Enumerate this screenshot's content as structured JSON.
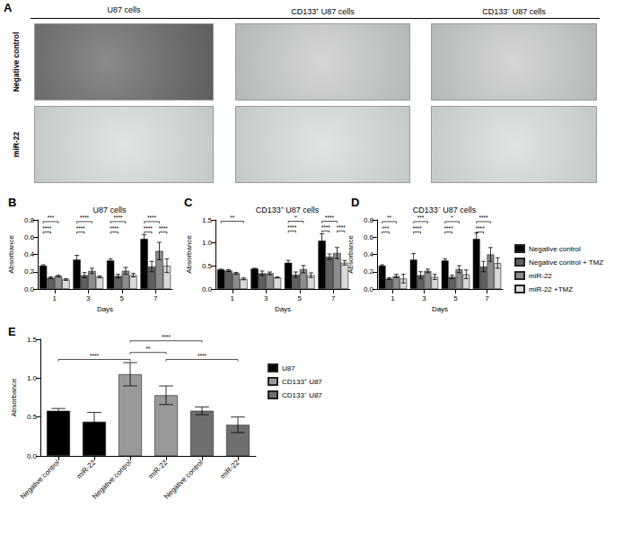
{
  "panel_a": {
    "label": "A",
    "columns": [
      "U87 cells",
      "CD133⁺ U87 cells",
      "CD133⁻ U87 cells"
    ],
    "rows": [
      "Negative control",
      "miR-22"
    ]
  },
  "chart_data": [
    {
      "panel": "B",
      "type": "bar",
      "title": "U87 cells",
      "x_label": "Days",
      "y_label": "Absorbance",
      "categories": [
        "1",
        "3",
        "5",
        "7"
      ],
      "series": [
        {
          "name": "Negative control",
          "color": "#000000",
          "values": [
            0.27,
            0.34,
            0.33,
            0.58
          ],
          "errors": [
            0.01,
            0.05,
            0.02,
            0.05
          ]
        },
        {
          "name": "Negative control + TMZ",
          "color": "#606060",
          "values": [
            0.13,
            0.16,
            0.15,
            0.26
          ],
          "errors": [
            0.01,
            0.03,
            0.02,
            0.06
          ]
        },
        {
          "name": "miR-22",
          "color": "#8c8c8c",
          "values": [
            0.15,
            0.21,
            0.21,
            0.44
          ],
          "errors": [
            0.01,
            0.03,
            0.04,
            0.1
          ]
        },
        {
          "name": "miR-22 +TMZ",
          "color": "#d9d9d9",
          "values": [
            0.11,
            0.14,
            0.16,
            0.27
          ],
          "errors": [
            0.01,
            0.01,
            0.02,
            0.08
          ]
        }
      ],
      "ylim": [
        0,
        0.8
      ],
      "yticks": [
        {
          "value": 0,
          "label": "0.0"
        },
        0.2,
        0.4,
        0.6,
        0.8
      ],
      "grid": false,
      "annotations": [
        {
          "category": 0,
          "from": 0,
          "to": 2,
          "y": 0.78,
          "text": "***"
        },
        {
          "category": 0,
          "from": 0,
          "to": 1,
          "y": 0.66,
          "text": "****"
        },
        {
          "category": 1,
          "from": 0,
          "to": 2,
          "y": 0.78,
          "text": "****"
        },
        {
          "category": 1,
          "from": 0,
          "to": 1,
          "y": 0.66,
          "text": "****"
        },
        {
          "category": 2,
          "from": 0,
          "to": 2,
          "y": 0.78,
          "text": "****"
        },
        {
          "category": 2,
          "from": 0,
          "to": 1,
          "y": 0.66,
          "text": "****"
        },
        {
          "category": 3,
          "from": 0,
          "to": 2,
          "y": 0.78,
          "text": "****"
        },
        {
          "category": 3,
          "from": 0,
          "to": 1,
          "y": 0.66,
          "text": "****"
        },
        {
          "category": 3,
          "from": 2,
          "to": 3,
          "y": 0.66,
          "text": "****"
        }
      ]
    },
    {
      "panel": "C",
      "type": "bar",
      "title": "CD133⁺ U87 cells",
      "x_label": "Days",
      "y_label": "Absorbance",
      "categories": [
        "1",
        "3",
        "5",
        "7"
      ],
      "series": [
        {
          "name": "Negative control",
          "color": "#000000",
          "values": [
            0.42,
            0.44,
            0.57,
            1.05
          ],
          "errors": [
            0.01,
            0.01,
            0.05,
            0.15
          ]
        },
        {
          "name": "Negative control + TMZ",
          "color": "#606060",
          "values": [
            0.4,
            0.34,
            0.31,
            0.7
          ],
          "errors": [
            0.02,
            0.05,
            0.06,
            0.06
          ]
        },
        {
          "name": "miR-22",
          "color": "#8c8c8c",
          "values": [
            0.34,
            0.34,
            0.43,
            0.78
          ],
          "errors": [
            0.02,
            0.03,
            0.08,
            0.12
          ]
        },
        {
          "name": "miR-22 +TMZ",
          "color": "#d9d9d9",
          "values": [
            0.22,
            0.25,
            0.3,
            0.57
          ],
          "errors": [
            0.02,
            0.01,
            0.05,
            0.05
          ]
        }
      ],
      "ylim": [
        0,
        1.5
      ],
      "yticks": [
        {
          "value": 0,
          "label": "0.0"
        },
        0.5,
        {
          "value": 1,
          "label": "1.0"
        },
        1.5
      ],
      "grid": false,
      "annotations": [
        {
          "category": 0,
          "from": 0,
          "to": 3,
          "y": 1.47,
          "text": "**"
        },
        {
          "category": 2,
          "from": 0,
          "to": 2,
          "y": 1.47,
          "text": "*"
        },
        {
          "category": 2,
          "from": 0,
          "to": 1,
          "y": 1.26,
          "text": "****"
        },
        {
          "category": 3,
          "from": 0,
          "to": 2,
          "y": 1.47,
          "text": "****"
        },
        {
          "category": 3,
          "from": 0,
          "to": 1,
          "y": 1.26,
          "text": "****"
        },
        {
          "category": 3,
          "from": 2,
          "to": 3,
          "y": 1.26,
          "text": "****"
        }
      ]
    },
    {
      "panel": "D",
      "type": "bar",
      "title": "CD133⁻ U87 cells",
      "x_label": "Days",
      "y_label": "Absorbance",
      "categories": [
        "1",
        "3",
        "5",
        "7"
      ],
      "series": [
        {
          "name": "Negative control",
          "color": "#000000",
          "values": [
            0.27,
            0.34,
            0.33,
            0.58
          ],
          "errors": [
            0.01,
            0.07,
            0.02,
            0.07
          ]
        },
        {
          "name": "Negative control + TMZ",
          "color": "#606060",
          "values": [
            0.12,
            0.16,
            0.14,
            0.26
          ],
          "errors": [
            0.01,
            0.04,
            0.02,
            0.06
          ]
        },
        {
          "name": "miR-22",
          "color": "#8c8c8c",
          "values": [
            0.15,
            0.21,
            0.23,
            0.4
          ],
          "errors": [
            0.02,
            0.02,
            0.04,
            0.08
          ]
        },
        {
          "name": "miR-22 +TMZ",
          "color": "#d9d9d9",
          "values": [
            0.12,
            0.14,
            0.17,
            0.3
          ],
          "errors": [
            0.05,
            0.03,
            0.05,
            0.06
          ]
        }
      ],
      "ylim": [
        0,
        0.8
      ],
      "yticks": [
        {
          "value": 0,
          "label": "0.0"
        },
        0.2,
        0.4,
        0.6,
        0.8
      ],
      "grid": false,
      "legend": "right",
      "annotations": [
        {
          "category": 0,
          "from": 0,
          "to": 2,
          "y": 0.78,
          "text": "**"
        },
        {
          "category": 0,
          "from": 0,
          "to": 1,
          "y": 0.66,
          "text": "***"
        },
        {
          "category": 1,
          "from": 0,
          "to": 2,
          "y": 0.78,
          "text": "***"
        },
        {
          "category": 1,
          "from": 0,
          "to": 1,
          "y": 0.66,
          "text": "****"
        },
        {
          "category": 2,
          "from": 0,
          "to": 2,
          "y": 0.78,
          "text": "*"
        },
        {
          "category": 2,
          "from": 0,
          "to": 1,
          "y": 0.66,
          "text": "****"
        },
        {
          "category": 3,
          "from": 0,
          "to": 2,
          "y": 0.78,
          "text": "****"
        },
        {
          "category": 3,
          "from": 0,
          "to": 1,
          "y": 0.66,
          "text": "****"
        }
      ]
    },
    {
      "panel": "E",
      "type": "bar",
      "y_label": "Absorbance",
      "categories": [
        "Negative control",
        "miR-22",
        "Negative control",
        "miR-22",
        "Negative control",
        "miR-22"
      ],
      "series": [
        {
          "name": "U87",
          "color": "#000000",
          "values": [
            0.58,
            0.44,
            null,
            null,
            null,
            null
          ],
          "errors": [
            0.03,
            0.12,
            null,
            null,
            null,
            null
          ]
        },
        {
          "name": "CD133⁺ U87",
          "color": "#999999",
          "values": [
            null,
            null,
            1.05,
            0.78,
            null,
            null
          ],
          "errors": [
            null,
            null,
            0.15,
            0.12,
            null,
            null
          ]
        },
        {
          "name": "CD133⁻ U87",
          "color": "#6f6f6f",
          "values": [
            null,
            null,
            null,
            null,
            0.58,
            0.4
          ],
          "errors": [
            null,
            null,
            null,
            null,
            0.05,
            0.1
          ]
        }
      ],
      "ylim": [
        0,
        1.5
      ],
      "yticks": [
        {
          "value": 0,
          "label": "0.0"
        },
        0.5,
        {
          "value": 1,
          "label": "1.0"
        },
        1.5
      ],
      "grid": false,
      "legend": "right",
      "annotations": [
        {
          "from": 0,
          "to": 2,
          "y": 1.24,
          "text": "****"
        },
        {
          "from": 2,
          "to": 3,
          "y": 1.33,
          "text": "**"
        },
        {
          "from": 3,
          "to": 5,
          "y": 1.24,
          "text": "****"
        },
        {
          "from": 2,
          "to": 4,
          "y": 1.48,
          "text": "****"
        }
      ]
    }
  ]
}
